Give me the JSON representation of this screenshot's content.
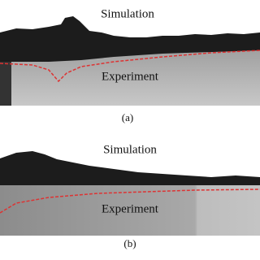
{
  "panels": [
    {
      "simulation_label": "Simulation",
      "experiment_label": "Experiment",
      "caption": "(a)"
    },
    {
      "simulation_label": "Simulation",
      "experiment_label": "Experiment",
      "caption": "(b)"
    }
  ]
}
